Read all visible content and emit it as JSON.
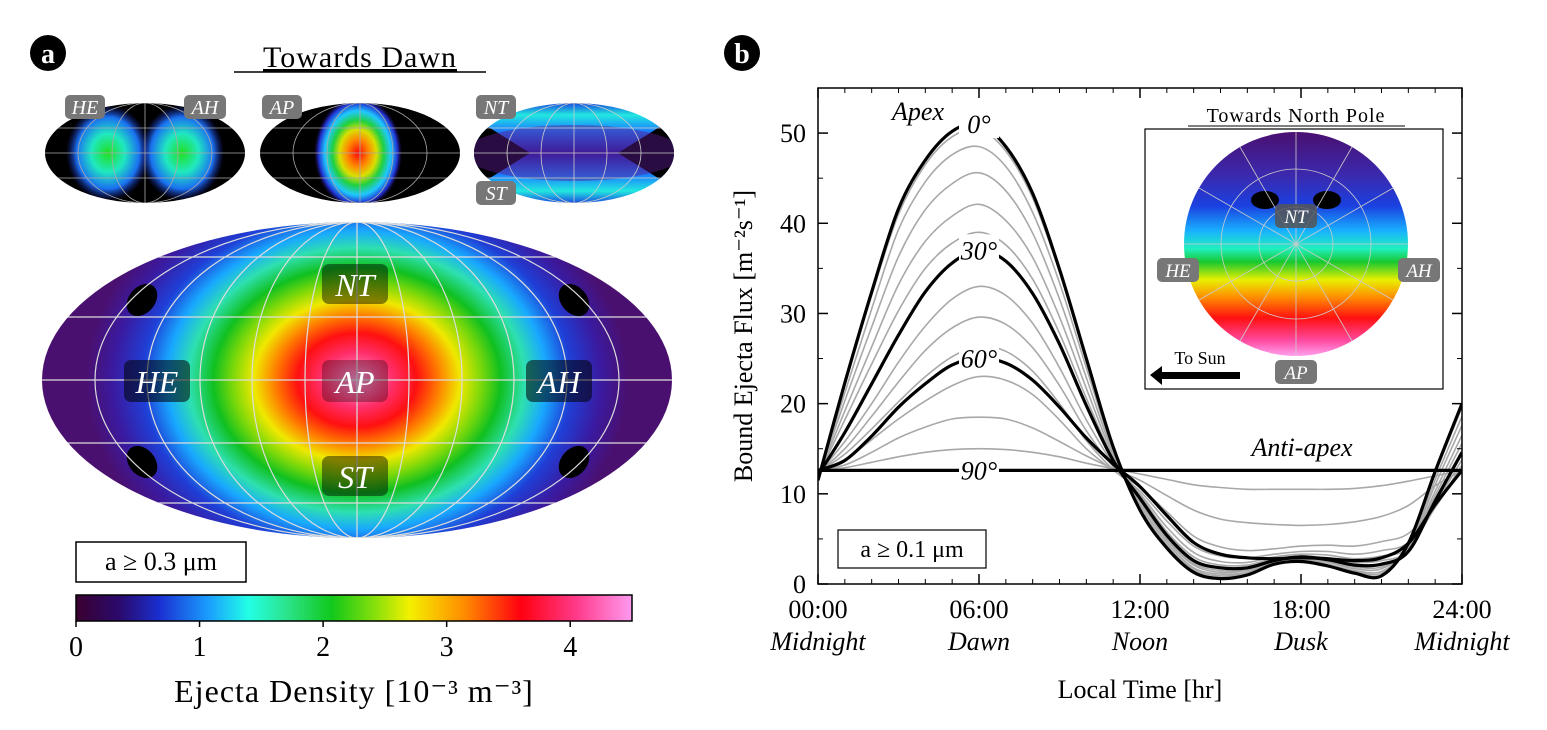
{
  "panel_a": {
    "letter": "a",
    "title": "Towards Dawn",
    "small_maps": [
      {
        "labels": [
          "HE",
          "AH"
        ]
      },
      {
        "labels": [
          "AP"
        ]
      },
      {
        "labels": [
          "NT",
          "ST"
        ]
      }
    ],
    "big_map_labels": {
      "nt": "NT",
      "he": "HE",
      "ap": "AP",
      "ah": "AH",
      "st": "ST"
    },
    "size_label": "a ≥ 0.3 μm",
    "colorbar": {
      "ticks": [
        "0",
        "1",
        "2",
        "3",
        "4"
      ],
      "range": [
        0,
        4.5
      ],
      "label": "Ejecta Density [10⁻³ m⁻³]"
    }
  },
  "panel_b": {
    "letter": "b",
    "inset_title": "Towards North Pole",
    "inset_labels": {
      "nt": "NT",
      "he": "HE",
      "ah": "AH",
      "ap": "AP"
    },
    "to_sun": "To Sun",
    "size_label": "a ≥ 0.1 μm",
    "annotations": {
      "apex": "Apex",
      "anti_apex": "Anti-apex"
    },
    "latitude_labels": [
      "0°",
      "30°",
      "60°",
      "90°"
    ]
  },
  "chart_data": {
    "type": "line",
    "xlabel": "Local Time [hr]",
    "ylabel": "Bound Ejecta Flux [m⁻²s⁻¹]",
    "xlim": [
      0,
      24
    ],
    "ylim": [
      0,
      55
    ],
    "x_ticks": [
      {
        "value": 0,
        "label": "00:00",
        "sublabel": "Midnight"
      },
      {
        "value": 6,
        "label": "06:00",
        "sublabel": "Dawn"
      },
      {
        "value": 12,
        "label": "12:00",
        "sublabel": "Noon"
      },
      {
        "value": 18,
        "label": "18:00",
        "sublabel": "Dusk"
      },
      {
        "value": 24,
        "label": "24:00",
        "sublabel": "Midnight"
      }
    ],
    "y_ticks": [
      0,
      10,
      20,
      30,
      40,
      50
    ],
    "x": [
      0,
      1,
      2,
      3,
      4,
      5,
      6,
      7,
      8,
      9,
      10,
      11,
      12,
      13,
      14,
      15,
      16,
      17,
      18,
      19,
      20,
      21,
      22,
      23,
      24
    ],
    "highlighted_latitudes": [
      0,
      30,
      60,
      90
    ],
    "series": [
      {
        "latitude": 0,
        "values": [
          11.5,
          22.3,
          32.4,
          41.6,
          47.0,
          50.2,
          51.0,
          48.5,
          43.3,
          34.9,
          25.0,
          15.2,
          8.2,
          4.0,
          1.3,
          0.6,
          1.0,
          2.2,
          2.5,
          2.0,
          1.2,
          0.9,
          4.5,
          12.5,
          20.0
        ]
      },
      {
        "latitude": 5,
        "values": [
          11.6,
          22.0,
          32.0,
          41.0,
          46.5,
          49.6,
          50.4,
          48.0,
          42.8,
          34.6,
          24.8,
          15.1,
          8.3,
          4.1,
          1.4,
          0.7,
          1.1,
          2.2,
          2.5,
          2.0,
          1.3,
          1.0,
          4.4,
          12.2,
          19.6
        ]
      },
      {
        "latitude": 10,
        "values": [
          11.7,
          21.2,
          30.5,
          39.3,
          44.6,
          47.6,
          48.5,
          46.3,
          41.2,
          33.4,
          24.0,
          14.8,
          8.5,
          4.3,
          1.6,
          0.9,
          1.2,
          2.3,
          2.6,
          2.1,
          1.4,
          1.2,
          4.2,
          11.6,
          18.6
        ]
      },
      {
        "latitude": 15,
        "values": [
          11.8,
          20.3,
          28.5,
          36.3,
          41.5,
          44.4,
          45.6,
          43.6,
          38.9,
          31.6,
          22.9,
          14.5,
          8.8,
          4.6,
          1.8,
          1.1,
          1.3,
          2.3,
          2.7,
          2.2,
          1.5,
          1.4,
          4.0,
          11.0,
          17.6
        ]
      },
      {
        "latitude": 20,
        "values": [
          11.9,
          19.2,
          26.3,
          33.2,
          38.0,
          40.8,
          42.1,
          40.3,
          36.2,
          29.6,
          21.7,
          14.2,
          9.1,
          4.9,
          2.1,
          1.3,
          1.5,
          2.4,
          2.8,
          2.4,
          1.7,
          1.7,
          3.9,
          10.3,
          16.5
        ]
      },
      {
        "latitude": 25,
        "values": [
          12.0,
          18.2,
          24.4,
          30.3,
          35.0,
          37.8,
          39.0,
          37.6,
          33.8,
          27.8,
          20.6,
          13.9,
          9.3,
          5.1,
          2.3,
          1.5,
          1.6,
          2.5,
          2.9,
          2.5,
          1.9,
          1.9,
          3.8,
          9.8,
          15.6
        ]
      },
      {
        "latitude": 30,
        "values": [
          12.1,
          16.8,
          22.2,
          27.6,
          32.4,
          35.6,
          37.0,
          35.8,
          32.2,
          26.6,
          19.8,
          13.7,
          9.5,
          5.4,
          2.6,
          1.8,
          1.8,
          2.6,
          3.0,
          2.7,
          2.1,
          2.2,
          3.6,
          9.2,
          14.6
        ]
      },
      {
        "latitude": 35,
        "values": [
          12.2,
          15.8,
          20.0,
          24.6,
          28.6,
          31.6,
          33.0,
          32.0,
          28.9,
          24.0,
          18.2,
          13.3,
          9.8,
          5.8,
          3.0,
          2.1,
          2.1,
          2.8,
          3.1,
          2.9,
          2.4,
          2.6,
          3.7,
          8.8,
          13.8
        ]
      },
      {
        "latitude": 40,
        "values": [
          12.3,
          15.0,
          18.6,
          22.4,
          25.9,
          28.4,
          29.6,
          28.8,
          26.2,
          22.0,
          17.0,
          13.0,
          10.0,
          6.3,
          3.5,
          2.5,
          2.4,
          3.0,
          3.3,
          3.2,
          2.8,
          3.1,
          4.0,
          8.5,
          13.2
        ]
      },
      {
        "latitude": 45,
        "values": [
          12.4,
          14.4,
          17.2,
          20.2,
          23.0,
          25.2,
          26.4,
          25.8,
          23.6,
          20.0,
          15.9,
          12.7,
          10.3,
          7.0,
          4.2,
          3.1,
          2.9,
          3.3,
          3.6,
          3.6,
          3.3,
          3.7,
          4.6,
          8.5,
          12.9
        ]
      },
      {
        "latitude": 50,
        "values": [
          12.5,
          13.8,
          16.0,
          18.3,
          20.3,
          22.0,
          23.0,
          22.6,
          21.0,
          18.2,
          15.0,
          12.6,
          10.7,
          8.0,
          5.3,
          4.1,
          3.7,
          3.9,
          4.2,
          4.3,
          4.2,
          4.7,
          5.6,
          8.9,
          12.8
        ]
      },
      {
        "latitude": 60,
        "values": [
          12.6,
          13.7,
          16.4,
          19.6,
          22.2,
          24.3,
          25.0,
          24.5,
          22.6,
          19.6,
          16.2,
          13.3,
          10.8,
          7.6,
          4.6,
          3.3,
          2.9,
          2.8,
          2.9,
          2.8,
          2.6,
          2.9,
          4.5,
          8.8,
          12.6
        ]
      },
      {
        "latitude": 70,
        "values": [
          12.6,
          13.2,
          14.6,
          16.2,
          17.4,
          18.3,
          18.5,
          18.3,
          17.3,
          15.8,
          14.2,
          12.8,
          11.5,
          9.8,
          8.2,
          7.2,
          6.8,
          6.6,
          6.5,
          6.6,
          6.9,
          7.5,
          8.7,
          10.9,
          12.6
        ]
      },
      {
        "latitude": 80,
        "values": [
          12.6,
          12.9,
          13.5,
          14.1,
          14.6,
          14.9,
          15.0,
          14.9,
          14.6,
          14.1,
          13.4,
          12.8,
          12.2,
          11.6,
          11.0,
          10.7,
          10.5,
          10.5,
          10.5,
          10.5,
          10.6,
          10.9,
          11.4,
          12.0,
          12.6
        ]
      },
      {
        "latitude": 90,
        "values": [
          12.6,
          12.6,
          12.6,
          12.6,
          12.6,
          12.6,
          12.6,
          12.6,
          12.6,
          12.6,
          12.6,
          12.6,
          12.6,
          12.6,
          12.6,
          12.6,
          12.6,
          12.6,
          12.6,
          12.6,
          12.6,
          12.6,
          12.6,
          12.6,
          12.6
        ]
      }
    ]
  }
}
